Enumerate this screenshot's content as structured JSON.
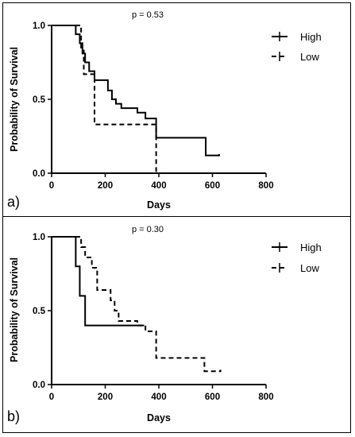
{
  "chart_data": [
    {
      "type": "line",
      "step": true,
      "panel_label": "a)",
      "annotation": "p = 0.53",
      "xlabel": "Days",
      "ylabel": "Probability of Survival",
      "xlim": [
        0,
        800
      ],
      "ylim": [
        0,
        1.0
      ],
      "xticks": [
        "0",
        "200",
        "400",
        "600",
        "800"
      ],
      "yticks": [
        "0.0",
        "0.5",
        "1.0"
      ],
      "legend_position": "top-right",
      "series": [
        {
          "name": "High",
          "dash": "solid",
          "x": [
            0,
            90,
            105,
            115,
            125,
            140,
            160,
            210,
            225,
            240,
            260,
            320,
            350,
            390,
            575,
            625
          ],
          "y": [
            1.0,
            0.94,
            0.88,
            0.81,
            0.75,
            0.69,
            0.63,
            0.56,
            0.5,
            0.47,
            0.44,
            0.41,
            0.37,
            0.24,
            0.12,
            0.13
          ]
        },
        {
          "name": "Low",
          "dash": "dashed",
          "x": [
            0,
            110,
            120,
            160,
            385,
            390
          ],
          "y": [
            1.0,
            0.83,
            0.67,
            0.33,
            0.33,
            0.0
          ]
        }
      ]
    },
    {
      "type": "line",
      "step": true,
      "panel_label": "b)",
      "annotation": "p = 0.30",
      "xlabel": "Days",
      "ylabel": "Probability of Survival",
      "xlim": [
        0,
        800
      ],
      "ylim": [
        0,
        1.0
      ],
      "xticks": [
        "0",
        "200",
        "400",
        "600",
        "800"
      ],
      "yticks": [
        "0.0",
        "0.5",
        "1.0"
      ],
      "legend_position": "top-right",
      "series": [
        {
          "name": "High",
          "dash": "solid",
          "x": [
            0,
            90,
            105,
            125,
            340,
            345
          ],
          "y": [
            1.0,
            0.8,
            0.6,
            0.4,
            0.4,
            0.4
          ]
        },
        {
          "name": "Low",
          "dash": "dashed",
          "x": [
            0,
            110,
            125,
            150,
            170,
            220,
            235,
            250,
            265,
            320,
            350,
            390,
            570,
            630
          ],
          "y": [
            1.0,
            0.93,
            0.86,
            0.79,
            0.64,
            0.57,
            0.5,
            0.43,
            0.43,
            0.4,
            0.36,
            0.18,
            0.09,
            0.1
          ]
        }
      ]
    }
  ]
}
